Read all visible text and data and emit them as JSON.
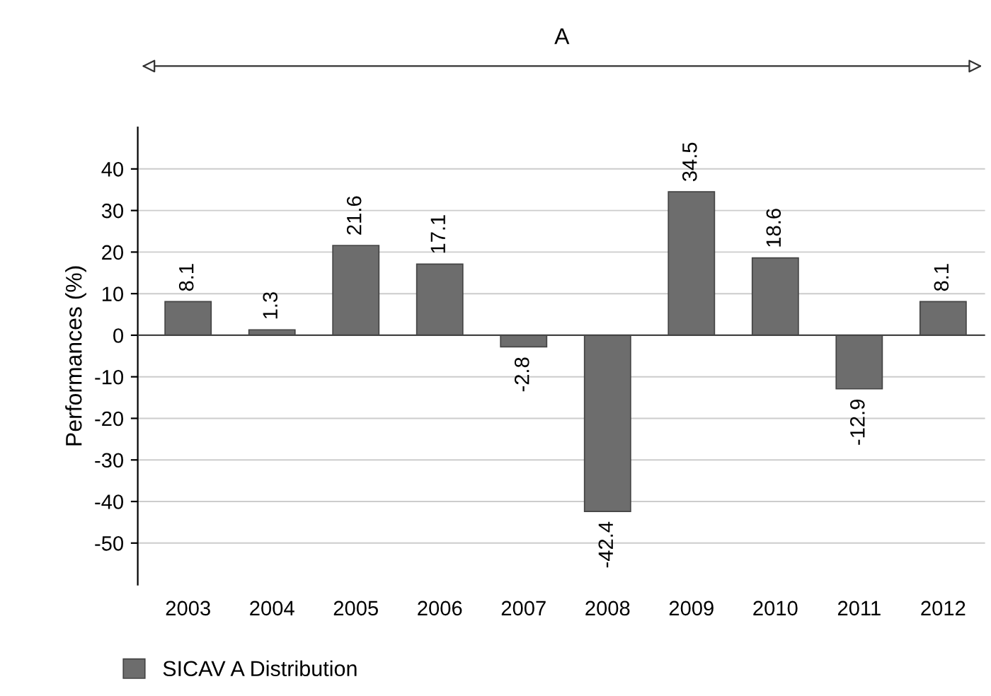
{
  "chart_data": {
    "type": "bar",
    "ylabel": "Performances (%)",
    "categories": [
      "2003",
      "2004",
      "2005",
      "2006",
      "2007",
      "2008",
      "2009",
      "2010",
      "2011",
      "2012"
    ],
    "series": [
      {
        "name": "SICAV A Distribution",
        "color": "#6d6d6d",
        "values": [
          8.1,
          1.3,
          21.6,
          17.1,
          -2.8,
          -42.4,
          34.5,
          18.6,
          -12.9,
          8.1
        ]
      }
    ],
    "ylim": [
      -60,
      50
    ],
    "yticks": [
      -50,
      -40,
      -30,
      -20,
      -10,
      0,
      10,
      20,
      30,
      40
    ],
    "grid": "y",
    "legend": "bottom left",
    "data_labels": true,
    "annotations": [
      "A"
    ]
  }
}
